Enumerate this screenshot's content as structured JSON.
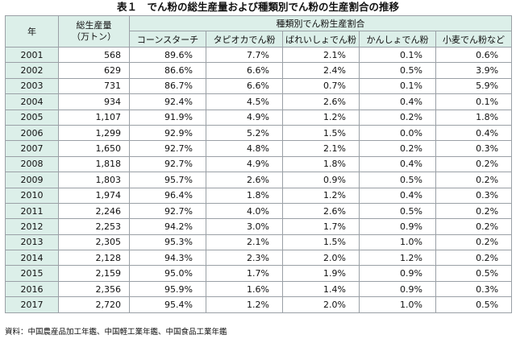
{
  "title": "表１　でん粉の総生産量および種類別でん粉の生産割合の推移",
  "headers": {
    "year": "年",
    "total_line1": "総生産量",
    "total_line2": "（万トン）",
    "group": "種類別でん粉生産割合",
    "types": [
      "コーンスターチ",
      "タピオカでん粉",
      "ばれいしょでん粉",
      "かんしょでん粉",
      "小麦でん粉など"
    ]
  },
  "rows": [
    {
      "year": "2001",
      "total": "568",
      "p": [
        "89.6%",
        "7.7%",
        "2.1%",
        "0.1%",
        "0.6%"
      ]
    },
    {
      "year": "2002",
      "total": "629",
      "p": [
        "86.6%",
        "6.6%",
        "2.4%",
        "0.5%",
        "3.9%"
      ]
    },
    {
      "year": "2003",
      "total": "731",
      "p": [
        "86.7%",
        "6.6%",
        "0.7%",
        "0.1%",
        "5.9%"
      ]
    },
    {
      "year": "2004",
      "total": "934",
      "p": [
        "92.4%",
        "4.5%",
        "2.6%",
        "0.4%",
        "0.1%"
      ]
    },
    {
      "year": "2005",
      "total": "1,107",
      "p": [
        "91.9%",
        "4.9%",
        "1.2%",
        "0.2%",
        "1.8%"
      ]
    },
    {
      "year": "2006",
      "total": "1,299",
      "p": [
        "92.9%",
        "5.2%",
        "1.5%",
        "0.0%",
        "0.4%"
      ]
    },
    {
      "year": "2007",
      "total": "1,650",
      "p": [
        "92.7%",
        "4.8%",
        "2.1%",
        "0.2%",
        "0.3%"
      ]
    },
    {
      "year": "2008",
      "total": "1,818",
      "p": [
        "92.7%",
        "4.9%",
        "1.8%",
        "0.4%",
        "0.2%"
      ]
    },
    {
      "year": "2009",
      "total": "1,803",
      "p": [
        "95.7%",
        "2.6%",
        "0.9%",
        "0.5%",
        "0.2%"
      ]
    },
    {
      "year": "2010",
      "total": "1,974",
      "p": [
        "96.4%",
        "1.8%",
        "1.2%",
        "0.4%",
        "0.3%"
      ]
    },
    {
      "year": "2011",
      "total": "2,246",
      "p": [
        "92.7%",
        "4.0%",
        "2.6%",
        "0.5%",
        "0.2%"
      ]
    },
    {
      "year": "2012",
      "total": "2,253",
      "p": [
        "94.2%",
        "3.0%",
        "1.7%",
        "0.9%",
        "0.2%"
      ]
    },
    {
      "year": "2013",
      "total": "2,305",
      "p": [
        "95.3%",
        "2.1%",
        "1.5%",
        "1.0%",
        "0.2%"
      ]
    },
    {
      "year": "2014",
      "total": "2,128",
      "p": [
        "94.3%",
        "2.3%",
        "2.0%",
        "1.2%",
        "0.2%"
      ]
    },
    {
      "year": "2015",
      "total": "2,159",
      "p": [
        "95.0%",
        "1.7%",
        "1.9%",
        "0.9%",
        "0.5%"
      ]
    },
    {
      "year": "2016",
      "total": "2,356",
      "p": [
        "95.9%",
        "1.6%",
        "1.4%",
        "0.9%",
        "0.3%"
      ]
    },
    {
      "year": "2017",
      "total": "2,720",
      "p": [
        "95.4%",
        "1.2%",
        "2.0%",
        "1.0%",
        "0.5%"
      ]
    }
  ],
  "source": "資料：中国農産品加工年鑑、中国軽工業年鑑、中国食品工業年鑑"
}
